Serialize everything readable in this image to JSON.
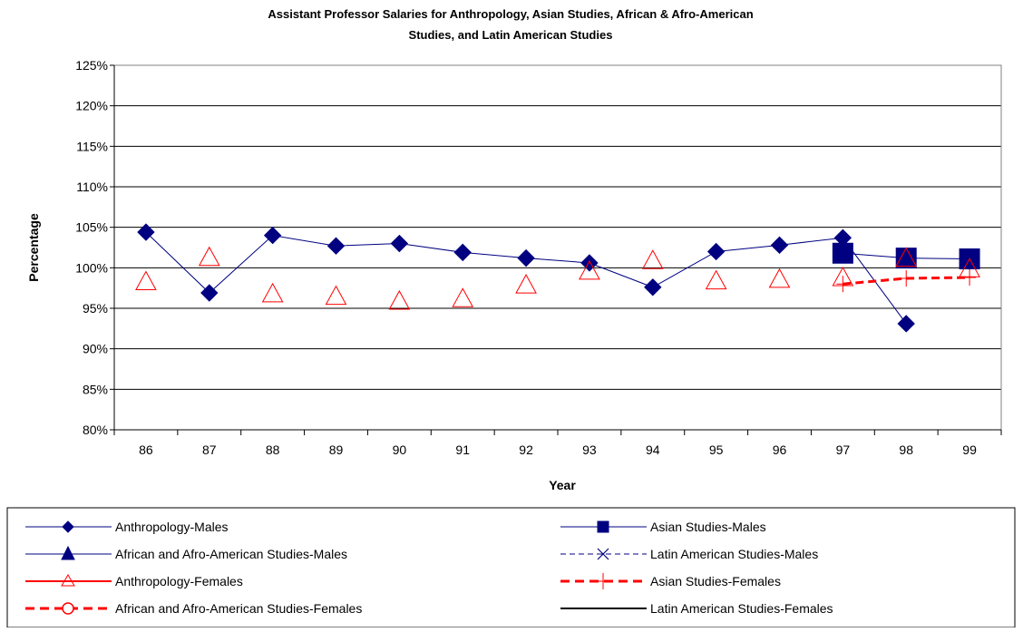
{
  "chart_data": {
    "type": "line",
    "title_line1": "Assistant Professor Salaries for Anthropology, Asian Studies, African & Afro-American",
    "title_line2": "Studies, and Latin American Studies",
    "xlabel": "Year",
    "ylabel": "Percentage",
    "categories": [
      "86",
      "87",
      "88",
      "89",
      "90",
      "91",
      "92",
      "93",
      "94",
      "95",
      "96",
      "97",
      "98",
      "99"
    ],
    "ylim": [
      80,
      125
    ],
    "ytick_step": 5,
    "ytick_labels": [
      "80%",
      "85%",
      "90%",
      "95%",
      "100%",
      "105%",
      "110%",
      "115%",
      "120%",
      "125%"
    ],
    "grid": "horizontal",
    "legend_position": "bottom",
    "series": [
      {
        "name": "Anthropology-Males",
        "color": "#000080",
        "marker": "diamond",
        "line": "solid",
        "line_width": 1,
        "values": [
          104.4,
          96.9,
          104.0,
          102.7,
          103.0,
          101.9,
          101.2,
          100.6,
          97.6,
          102.0,
          102.8,
          103.7,
          93.1,
          null
        ]
      },
      {
        "name": "Asian Studies-Males",
        "color": "#000080",
        "marker": "square",
        "line": "solid",
        "line_width": 1,
        "values": [
          null,
          null,
          null,
          null,
          null,
          null,
          null,
          null,
          null,
          null,
          null,
          101.8,
          101.2,
          101.1
        ]
      },
      {
        "name": "African and Afro-American Studies-Males",
        "color": "#000080",
        "marker": "triangle-filled",
        "line": "solid",
        "line_width": 1,
        "values": [
          null,
          null,
          null,
          null,
          null,
          null,
          null,
          null,
          null,
          null,
          null,
          null,
          null,
          null
        ]
      },
      {
        "name": "Latin American Studies-Males",
        "color": "#000080",
        "marker": "x",
        "line": "dashed",
        "line_width": 1,
        "values": [
          null,
          null,
          null,
          null,
          null,
          null,
          null,
          null,
          null,
          null,
          null,
          null,
          null,
          null
        ]
      },
      {
        "name": "Anthropology-Females",
        "color": "#FF0000",
        "marker": "triangle-open",
        "line": "none",
        "line_width": 2,
        "values": [
          98.3,
          101.3,
          96.8,
          96.5,
          95.9,
          96.2,
          97.9,
          99.6,
          100.9,
          98.4,
          98.6,
          98.8,
          101.2,
          99.9
        ]
      },
      {
        "name": "Asian Studies-Females",
        "color": "#FF0000",
        "marker": "plus",
        "line": "dashed",
        "line_width": 3,
        "values": [
          null,
          null,
          null,
          null,
          null,
          null,
          null,
          null,
          null,
          null,
          null,
          98.0,
          98.7,
          98.8
        ]
      },
      {
        "name": "African and Afro-American Studies-Females",
        "color": "#FF0000",
        "marker": "circle-open",
        "line": "dashed",
        "line_width": 3,
        "values": [
          null,
          null,
          null,
          null,
          null,
          null,
          null,
          null,
          null,
          null,
          null,
          null,
          null,
          null
        ]
      },
      {
        "name": "Latin American Studies-Females",
        "color": "#000000",
        "marker": "none",
        "line": "solid",
        "line_width": 2,
        "values": [
          null,
          null,
          null,
          null,
          null,
          null,
          null,
          null,
          null,
          null,
          null,
          null,
          null,
          null
        ]
      }
    ]
  }
}
